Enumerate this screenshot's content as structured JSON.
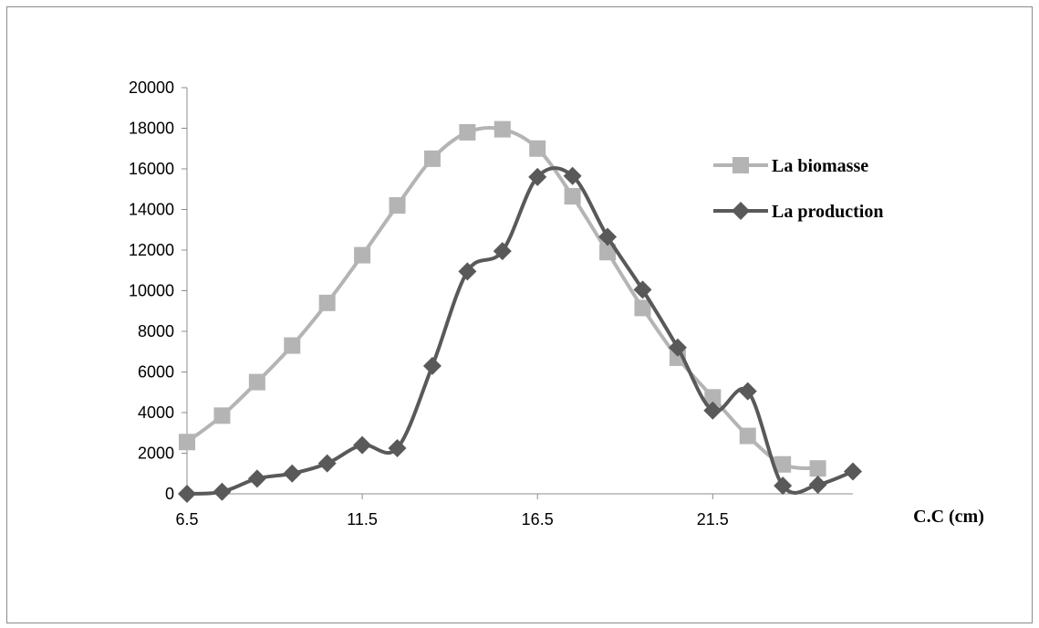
{
  "chart_data": {
    "type": "line",
    "title": "",
    "xlabel": "C.C (cm)",
    "ylabel": "",
    "xlim": [
      6.5,
      25.5
    ],
    "ylim": [
      0,
      20000
    ],
    "xticks": [
      6.5,
      11.5,
      16.5,
      21.5
    ],
    "xtick_labels": [
      "6.5",
      "11.5",
      "16.5",
      "21.5"
    ],
    "yticks": [
      0,
      2000,
      4000,
      6000,
      8000,
      10000,
      12000,
      14000,
      16000,
      18000,
      20000
    ],
    "ytick_labels": [
      "0",
      "2000",
      "4000",
      "6000",
      "8000",
      "10000",
      "12000",
      "14000",
      "16000",
      "18000",
      "20000"
    ],
    "grid": false,
    "smooth": true,
    "legend_position": "right",
    "series": [
      {
        "name": "La biomasse",
        "color": "#b4b4b4",
        "marker": "square",
        "x": [
          6.5,
          7.5,
          8.5,
          9.5,
          10.5,
          11.5,
          12.5,
          13.5,
          14.5,
          15.5,
          16.5,
          17.5,
          18.5,
          19.5,
          20.5,
          21.5,
          22.5,
          23.5,
          24.5
        ],
        "values": [
          2550,
          3850,
          5500,
          7300,
          9400,
          11750,
          14200,
          16500,
          17800,
          17950,
          17000,
          14650,
          11900,
          9150,
          6700,
          4750,
          2850,
          1450,
          1250
        ]
      },
      {
        "name": "La production",
        "color": "#595959",
        "marker": "diamond",
        "x": [
          6.5,
          7.5,
          8.5,
          9.5,
          10.5,
          11.5,
          12.5,
          13.5,
          14.5,
          15.5,
          16.5,
          17.5,
          18.5,
          19.5,
          20.5,
          21.5,
          22.5,
          23.5,
          24.5,
          25.5
        ],
        "values": [
          0,
          100,
          750,
          1000,
          1500,
          2400,
          2250,
          6300,
          10950,
          11950,
          15600,
          15650,
          12650,
          10050,
          7200,
          4100,
          5050,
          400,
          450,
          1100
        ]
      }
    ]
  }
}
